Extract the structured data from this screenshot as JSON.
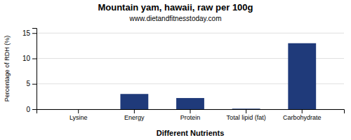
{
  "chart_data": {
    "type": "bar",
    "title": "Mountain yam, hawaii, raw per 100g",
    "subtitle": "www.dietandfitnesstoday.com",
    "xlabel": "Different Nutrients",
    "ylabel": "Percentage of RDH (%)",
    "categories": [
      "Lysine",
      "Energy",
      "Protein",
      "Total lipid (fat)",
      "Carbohydrate"
    ],
    "values": [
      0.0,
      3.0,
      2.2,
      0.1,
      13.0
    ],
    "color": "#1f3a7a",
    "ylim": [
      0,
      16
    ],
    "yticks": [
      0,
      5,
      10,
      15
    ],
    "grid": true
  }
}
